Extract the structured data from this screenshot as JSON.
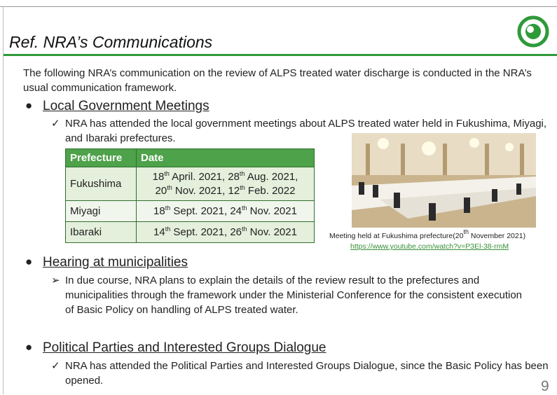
{
  "header": {
    "title": "Ref. NRA’s Communications"
  },
  "intro": "The following NRA’s communication on the review of ALPS treated water discharge is conducted in the NRA’s usual communication framework.",
  "sections": [
    {
      "heading": "Local Government Meetings",
      "text": "NRA has attended the local government meetings about ALPS treated water held in Fukushima, Miyagi, and Ibaraki prefectures."
    },
    {
      "heading": "Hearing at municipalities",
      "text": "In due course, NRA plans to explain the details of the review result to the prefectures and municipalities through the framework under the Ministerial Conference for the consistent execution of Basic Policy on handling of ALPS treated water."
    },
    {
      "heading": "Political Parties and Interested Groups Dialogue",
      "text": "NRA has attended the Political Parties and Interested Groups Dialogue, since the Basic Policy has been opened."
    }
  ],
  "table": {
    "header": [
      "Prefecture",
      "Date"
    ],
    "rows": [
      [
        "Fukushima",
        [
          [
            [
              "18",
              "th",
              " April. 2021, "
            ],
            [
              "28",
              "th",
              " Aug. 2021,"
            ]
          ],
          [
            [
              "20",
              "th",
              " Nov. 2021, "
            ],
            [
              "12",
              "th",
              " Feb. 2022"
            ]
          ]
        ]
      ],
      [
        "Miyagi",
        [
          [
            [
              "18",
              "th",
              " Sept. 2021, "
            ],
            [
              "24",
              "th",
              " Nov. 2021"
            ]
          ]
        ]
      ],
      [
        "Ibaraki",
        [
          [
            [
              "14",
              "th",
              " Sept. 2021, "
            ],
            [
              "26",
              "th",
              " Nov. 2021"
            ]
          ]
        ]
      ]
    ]
  },
  "photo": {
    "caption": [
      "Meeting held at Fukushima prefecture(20",
      "th",
      " November 2021)"
    ],
    "link": "https://www.youtube.com/watch?v=P3El-38-rmM"
  },
  "page_number": "9"
}
